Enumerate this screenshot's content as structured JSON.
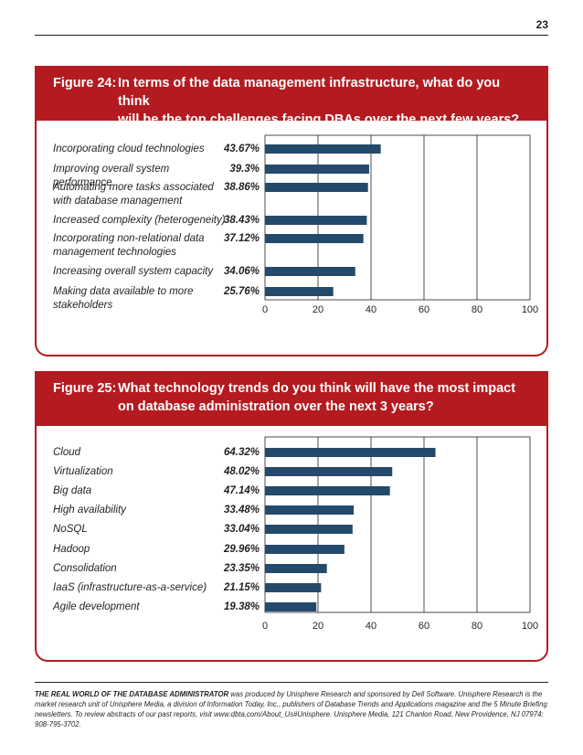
{
  "page_number": "23",
  "figures": [
    {
      "number": "Figure 24:",
      "title_line1": "In terms of the data management infrastructure, what do you think",
      "title_line2": "will be the top challenges facing DBAs over the next few years?"
    },
    {
      "number": "Figure 25:",
      "title_line1": "What technology trends do you think will have the most impact",
      "title_line2": "on database administration over the next 3 years?"
    }
  ],
  "chart_data": [
    {
      "type": "bar",
      "orientation": "horizontal",
      "categories": [
        [
          "Incorporating cloud technologies"
        ],
        [
          "Improving overall system performance"
        ],
        [
          "Automating more tasks associated",
          "with database management"
        ],
        [
          "Increased complexity (heterogeneity)"
        ],
        [
          "Incorporating non-relational data",
          "management technologies"
        ],
        [
          "Increasing overall system capacity"
        ],
        [
          "Making data available to more",
          "stakeholders"
        ]
      ],
      "values": [
        43.67,
        39.3,
        38.86,
        38.43,
        37.12,
        34.06,
        25.76
      ],
      "value_labels": [
        "43.67%",
        "39.3%",
        "38.86%",
        "38.43%",
        "37.12%",
        "34.06%",
        "25.76%"
      ],
      "xlim": [
        0,
        100
      ],
      "xticks": [
        "0",
        "20",
        "40",
        "60",
        "80",
        "100"
      ],
      "bar_color": "#234a6b",
      "grid": true
    },
    {
      "type": "bar",
      "orientation": "horizontal",
      "categories": [
        [
          "Cloud"
        ],
        [
          "Virtualization"
        ],
        [
          "Big data"
        ],
        [
          "High availability"
        ],
        [
          "NoSQL"
        ],
        [
          "Hadoop"
        ],
        [
          "Consolidation"
        ],
        [
          "IaaS (infrastructure-as-a-service)"
        ],
        [
          "Agile development"
        ]
      ],
      "values": [
        64.32,
        48.02,
        47.14,
        33.48,
        33.04,
        29.96,
        23.35,
        21.15,
        19.38
      ],
      "value_labels": [
        "64.32%",
        "48.02%",
        "47.14%",
        "33.48%",
        "33.04%",
        "29.96%",
        "23.35%",
        "21.15%",
        "19.38%"
      ],
      "xlim": [
        0,
        100
      ],
      "xticks": [
        "0",
        "20",
        "40",
        "60",
        "80",
        "100"
      ],
      "bar_color": "#234a6b",
      "grid": true
    }
  ],
  "footer": {
    "bold_text": "THE REAL WORLD OF THE DATABASE ADMINISTRATOR",
    "text": " was produced by Unisphere Research and sponsored by Dell Software. Unisphere Research is the market research unit of Unisphere Media, a division of Information Today, Inc., publishers of Database Trends and Applications magazine and the 5 Minute Briefing newsletters. To review abstracts of our past reports, visit www.dbta.com/About_Us#Unisphere. Unisphere Media, 121 Chanlon Road, New Providence, NJ 07974; 908-795-3702."
  },
  "colors": {
    "accent": "#b31b20",
    "bar": "#234a6b"
  }
}
